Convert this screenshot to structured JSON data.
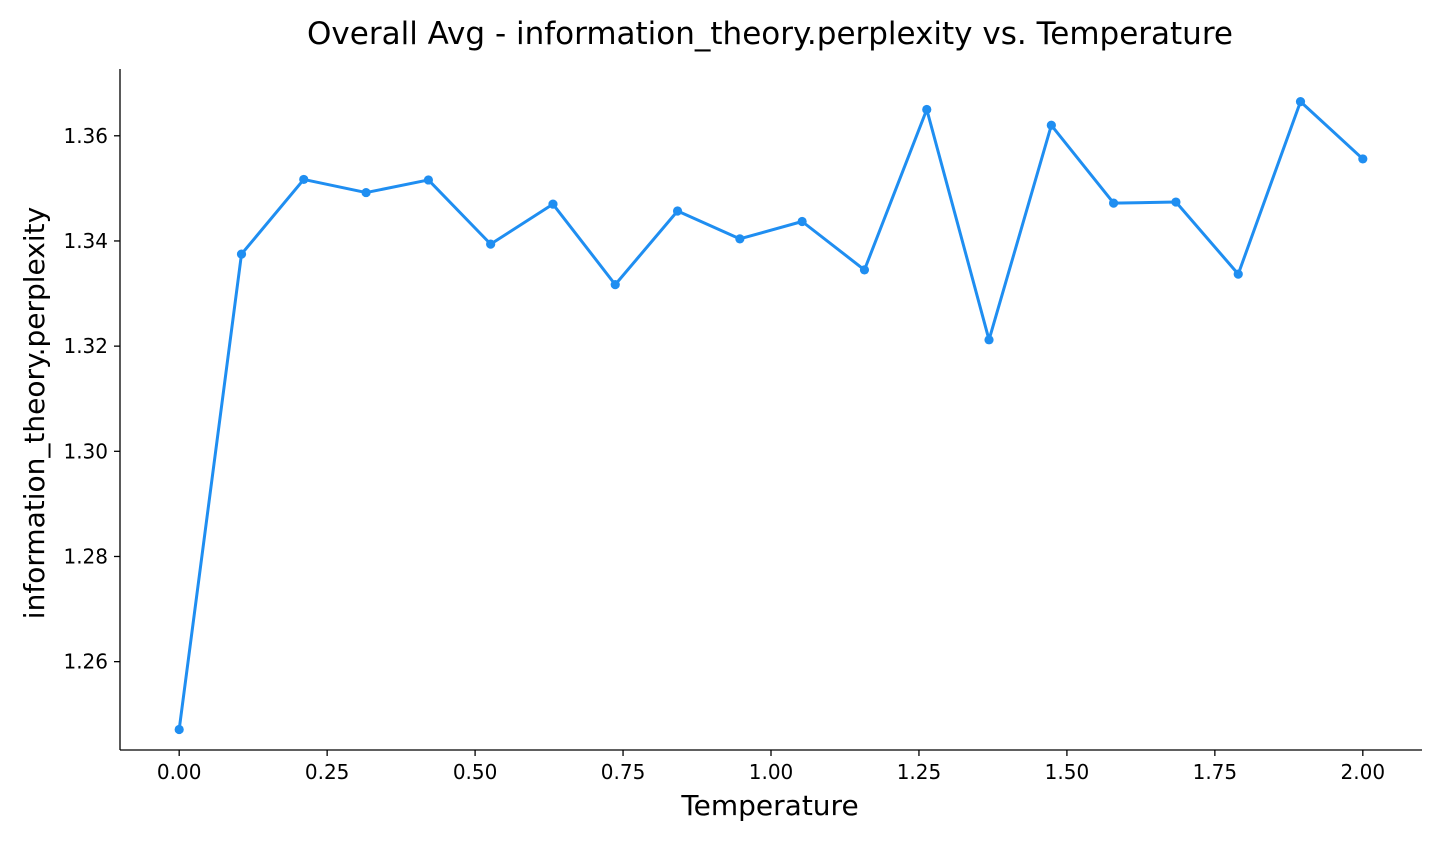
{
  "chart_data": {
    "type": "line",
    "title": "Overall Avg - information_theory.perplexity vs. Temperature",
    "xlabel": "Temperature",
    "ylabel": "information_theory.perplexity",
    "xlim": [
      -0.1,
      2.1
    ],
    "ylim": [
      1.2432,
      1.3727
    ],
    "x_ticks": [
      0.0,
      0.25,
      0.5,
      0.75,
      1.0,
      1.25,
      1.5,
      1.75,
      2.0
    ],
    "x_tick_labels": [
      "0.00",
      "0.25",
      "0.50",
      "0.75",
      "1.00",
      "1.25",
      "1.50",
      "1.75",
      "2.00"
    ],
    "y_ticks": [
      1.26,
      1.28,
      1.3,
      1.32,
      1.34,
      1.36
    ],
    "y_tick_labels": [
      "1.26",
      "1.28",
      "1.30",
      "1.32",
      "1.34",
      "1.36"
    ],
    "grid": false,
    "series": [
      {
        "color": "#1f8ef1",
        "x": [
          0.0,
          0.1053,
          0.2105,
          0.3158,
          0.4211,
          0.5263,
          0.6316,
          0.7368,
          0.8421,
          0.9474,
          1.0526,
          1.1579,
          1.2632,
          1.3684,
          1.4737,
          1.5789,
          1.6842,
          1.7895,
          1.8947,
          2.0
        ],
        "y": [
          1.2471,
          1.3375,
          1.3517,
          1.3492,
          1.3516,
          1.3394,
          1.347,
          1.3317,
          1.3457,
          1.3404,
          1.3437,
          1.3345,
          1.365,
          1.3212,
          1.362,
          1.3472,
          1.3474,
          1.3337,
          1.3665,
          1.3556
        ]
      }
    ]
  }
}
